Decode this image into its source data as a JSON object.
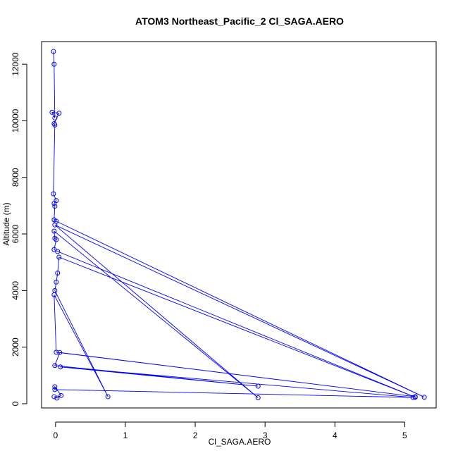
{
  "chart_data": {
    "type": "line",
    "title": "ATOM3 Northeast_Pacific_2 Cl_SAGA.AERO",
    "xlabel": "Cl_SAGA.AERO",
    "ylabel": "Altitude (m)",
    "xlim": [
      -0.2,
      5.45
    ],
    "ylim": [
      -150,
      12800
    ],
    "xticks": [
      "0",
      "1",
      "2",
      "3",
      "4",
      "5"
    ],
    "yticks": [
      "0",
      "2000",
      "4000",
      "6000",
      "8000",
      "10000",
      "12000"
    ],
    "grid": false,
    "series_color": "#0000ff",
    "points": [
      {
        "x": -0.03,
        "y": 12450
      },
      {
        "x": -0.02,
        "y": 12000
      },
      {
        "x": -0.01,
        "y": 10100
      },
      {
        "x": -0.05,
        "y": 10300
      },
      {
        "x": 0.05,
        "y": 10270
      },
      {
        "x": -0.02,
        "y": 9900
      },
      {
        "x": -0.01,
        "y": 9850
      },
      {
        "x": -0.03,
        "y": 7420
      },
      {
        "x": 0.01,
        "y": 7180
      },
      {
        "x": -0.02,
        "y": 7080
      },
      {
        "x": -0.01,
        "y": 6980
      },
      {
        "x": -0.02,
        "y": 6500
      },
      {
        "x": 0.01,
        "y": 6450
      },
      {
        "x": 5.28,
        "y": 230
      },
      {
        "x": -0.01,
        "y": 6320
      },
      {
        "x": 2.9,
        "y": 210
      },
      {
        "x": -0.02,
        "y": 6100
      },
      {
        "x": -0.01,
        "y": 5850
      },
      {
        "x": 0.01,
        "y": 5800
      },
      {
        "x": -0.02,
        "y": 5450
      },
      {
        "x": 0.03,
        "y": 5380
      },
      {
        "x": 5.15,
        "y": 230
      },
      {
        "x": 0.05,
        "y": 5180
      },
      {
        "x": 0.03,
        "y": 4620
      },
      {
        "x": 0.01,
        "y": 4300
      },
      {
        "x": -0.01,
        "y": 4000
      },
      {
        "x": 0.75,
        "y": 250
      },
      {
        "x": -0.02,
        "y": 3850
      },
      {
        "x": 0.01,
        "y": 1820
      },
      {
        "x": 5.15,
        "y": 250
      },
      {
        "x": 0.06,
        "y": 1810
      },
      {
        "x": -0.01,
        "y": 1350
      },
      {
        "x": 2.9,
        "y": 620
      },
      {
        "x": 0.07,
        "y": 1300
      },
      {
        "x": 5.12,
        "y": 220
      },
      {
        "x": -0.01,
        "y": 500
      },
      {
        "x": -0.01,
        "y": 600
      },
      {
        "x": 0.08,
        "y": 290
      },
      {
        "x": 0.02,
        "y": 200
      },
      {
        "x": -0.02,
        "y": 250
      }
    ]
  }
}
